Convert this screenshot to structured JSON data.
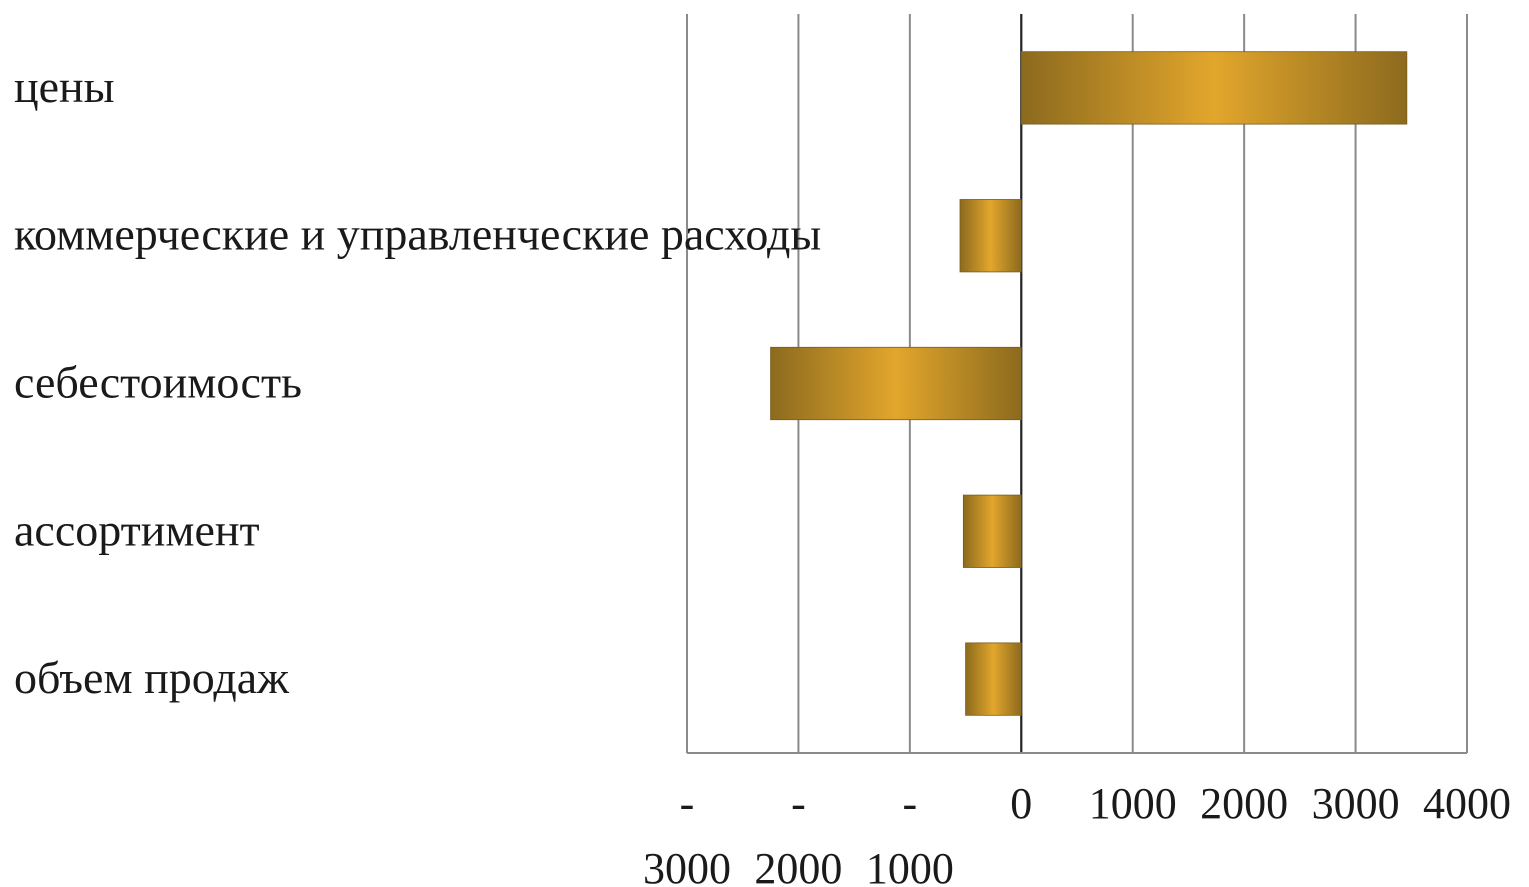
{
  "chart_data": {
    "type": "bar",
    "orientation": "horizontal",
    "categories": [
      "цены",
      "коммерческие и управленческие расходы",
      "себестоимость",
      "ассортимент",
      "объем продаж"
    ],
    "values": [
      3460,
      -550,
      -2250,
      -520,
      -500
    ],
    "xlim": [
      -3000,
      4000
    ],
    "x_ticks": [
      -3000,
      -2000,
      -1000,
      0,
      1000,
      2000,
      3000,
      4000
    ],
    "x_tick_labels": [
      {
        "top": "-",
        "bottom": "3000"
      },
      {
        "top": "-",
        "bottom": "2000"
      },
      {
        "top": "-",
        "bottom": "1000"
      },
      {
        "top": "0",
        "bottom": ""
      },
      {
        "top": "1000",
        "bottom": ""
      },
      {
        "top": "2000",
        "bottom": ""
      },
      {
        "top": "3000",
        "bottom": ""
      },
      {
        "top": "4000",
        "bottom": ""
      }
    ],
    "grid": true,
    "legend": "none",
    "title": "",
    "xlabel": "",
    "ylabel": "",
    "colors": {
      "bar_center": "#E2A62C",
      "bar_edge": "#8C6A1E",
      "grid": "#8a8a8a",
      "zero_axis": "#222222",
      "text": "#1a1a1a"
    }
  }
}
